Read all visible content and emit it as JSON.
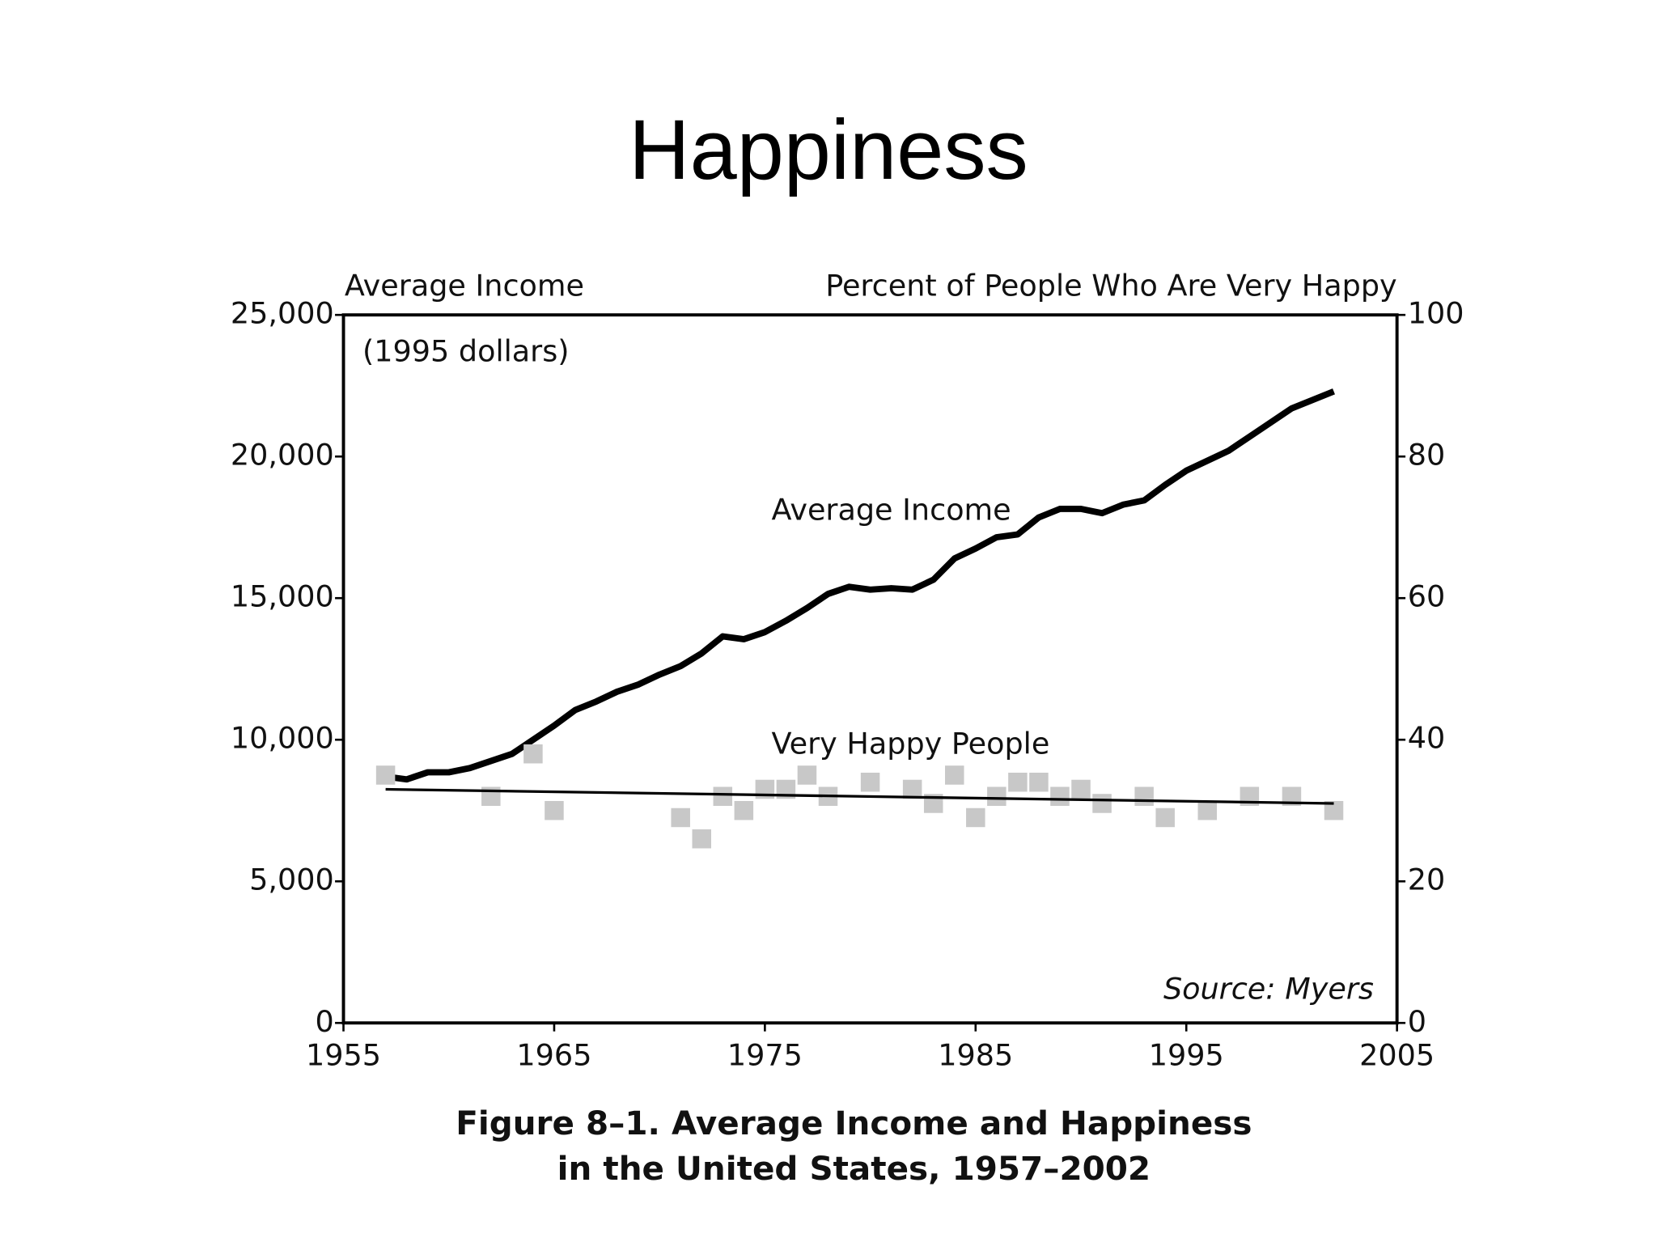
{
  "chart_data": {
    "type": "line",
    "title": "Happiness",
    "y_label": "Average Income",
    "y_label_note": "(1995 dollars)",
    "y2_label": "Percent of People Who Are Very Happy",
    "source": "Source: Myers",
    "caption": [
      "Figure 8–1.  Average Income and Happiness",
      "in the United States, 1957–2002"
    ],
    "xlim": [
      1955,
      2005
    ],
    "xticks": [
      1955,
      1965,
      1975,
      1985,
      1995,
      2005
    ],
    "ylim": [
      0,
      25000
    ],
    "yticks": [
      0,
      {
        "value": 5000,
        "label": "5,000"
      },
      {
        "value": 10000,
        "label": "10,000"
      },
      {
        "value": 15000,
        "label": "15,000"
      },
      {
        "value": 20000,
        "label": "20,000"
      },
      {
        "value": 25000,
        "label": "25,000"
      }
    ],
    "y2lim": [
      0,
      100
    ],
    "y2ticks": [
      0,
      20,
      40,
      60,
      80,
      100
    ],
    "series": [
      {
        "name": "Average Income",
        "color": "#000000",
        "x": [
          1957,
          1958,
          1959,
          1960,
          1961,
          1962,
          1963,
          1964,
          1965,
          1966,
          1967,
          1968,
          1969,
          1970,
          1971,
          1972,
          1973,
          1974,
          1975,
          1976,
          1977,
          1978,
          1979,
          1980,
          1981,
          1982,
          1983,
          1984,
          1985,
          1986,
          1987,
          1988,
          1989,
          1990,
          1991,
          1992,
          1993,
          1994,
          1995,
          1996,
          1997,
          1998,
          1999,
          2000,
          2001,
          2002
        ],
        "values": [
          8700,
          8600,
          8850,
          8850,
          9000,
          9250,
          9500,
          10000,
          10500,
          11050,
          11350,
          11700,
          11950,
          12300,
          12600,
          13050,
          13650,
          13550,
          13800,
          14200,
          14650,
          15150,
          15400,
          15300,
          15350,
          15300,
          15650,
          16400,
          16750,
          17150,
          17250,
          17850,
          18150,
          18150,
          18000,
          18300,
          18450,
          19000,
          19500,
          19850,
          20200,
          20700,
          21200,
          21700,
          22000,
          22300
        ]
      },
      {
        "name": "Very Happy People",
        "color": "#c8c8c8",
        "axis": "y2",
        "type": "scatter",
        "x": [
          1957,
          1962,
          1964,
          1965,
          1971,
          1972,
          1973,
          1974,
          1975,
          1976,
          1977,
          1978,
          1980,
          1982,
          1983,
          1984,
          1985,
          1986,
          1987,
          1988,
          1989,
          1990,
          1991,
          1993,
          1994,
          1996,
          1998,
          2000,
          2002
        ],
        "values": [
          35,
          32,
          38,
          30,
          29,
          26,
          32,
          30,
          33,
          33,
          35,
          32,
          34,
          33,
          31,
          35,
          29,
          32,
          34,
          34,
          32,
          33,
          31,
          32,
          29,
          30,
          32,
          32,
          30
        ],
        "trend": {
          "x": [
            1957,
            2002
          ],
          "values": [
            33,
            31
          ],
          "color": "#000000"
        }
      }
    ]
  }
}
